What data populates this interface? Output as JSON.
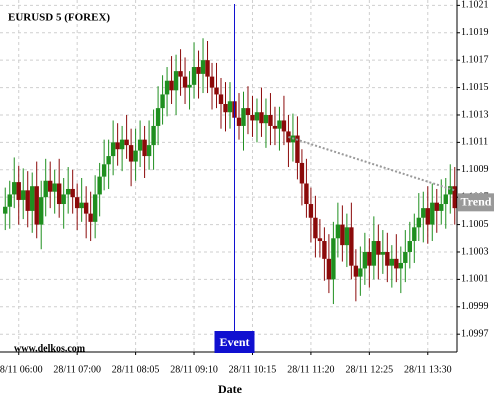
{
  "chart_data": {
    "type": "candlestick",
    "title": "EURUSD 5 (FOREX)",
    "x_label": "Date",
    "watermark": "www.delkos.com",
    "up_color": "#1f8f1f",
    "down_color": "#8b0a0a",
    "grid": true,
    "ylim": [
      1.09957,
      1.10211
    ],
    "yticks": [
      1.1021,
      1.1019,
      1.1017,
      1.1015,
      1.1013,
      1.1011,
      1.1009,
      1.1007,
      1.1005,
      1.1003,
      1.1001,
      1.0999,
      1.0997
    ],
    "categories": [
      null,
      null,
      null,
      "28/11 06:00",
      null,
      null,
      null,
      null,
      null,
      null,
      null,
      null,
      null,
      null,
      null,
      null,
      "28/11 07:00",
      null,
      null,
      null,
      null,
      null,
      null,
      null,
      null,
      null,
      null,
      null,
      null,
      "28/11 08:05",
      null,
      null,
      null,
      null,
      null,
      null,
      null,
      null,
      null,
      null,
      null,
      null,
      "28/11 09:10",
      null,
      null,
      null,
      null,
      null,
      null,
      null,
      null,
      null,
      null,
      null,
      null,
      "28/11 10:15",
      null,
      null,
      null,
      null,
      null,
      null,
      null,
      null,
      null,
      null,
      null,
      null,
      "28/11 11:20",
      null,
      null,
      null,
      null,
      null,
      null,
      null,
      null,
      null,
      null,
      null,
      null,
      "28/11 12:25",
      null,
      null,
      null,
      null,
      null,
      null,
      null,
      null,
      null,
      null,
      null,
      null,
      "28/11 13:30",
      null,
      null,
      null,
      null,
      null,
      null
    ],
    "open": [
      1.10058,
      1.10063,
      1.10072,
      1.10081,
      1.10068,
      1.10075,
      1.1006,
      1.10078,
      1.1005,
      1.1007,
      1.10082,
      1.10074,
      1.1008,
      1.10065,
      1.10072,
      1.10076,
      1.1007,
      1.10062,
      1.10066,
      1.10058,
      1.10052,
      1.10072,
      1.10085,
      1.10094,
      1.101,
      1.1011,
      1.10105,
      1.10112,
      1.10108,
      1.10096,
      1.10104,
      1.10112,
      1.101,
      1.10108,
      1.10122,
      1.10135,
      1.10145,
      1.10155,
      1.10148,
      1.10162,
      1.10158,
      1.1015,
      1.10152,
      1.10165,
      1.1016,
      1.1017,
      1.10158,
      1.1015,
      1.10145,
      1.10138,
      1.10132,
      1.1014,
      1.10128,
      1.10122,
      1.10135,
      1.1013,
      1.10126,
      1.10132,
      1.10124,
      1.1013,
      1.10122,
      1.1012,
      1.10126,
      1.10118,
      1.1011,
      1.10115,
      1.10095,
      1.1008,
      1.10065,
      1.10055,
      1.1004,
      1.10038,
      1.10025,
      1.1001,
      1.1004,
      1.1005,
      1.10035,
      1.10048,
      1.1002,
      1.10012,
      1.10018,
      1.1003,
      1.1002,
      1.10038,
      1.10028,
      1.1003,
      1.1002,
      1.10025,
      1.10018,
      1.10022,
      1.1003,
      1.10038,
      1.10048,
      1.10055,
      1.10062,
      1.1005,
      1.10066,
      1.1006,
      1.10065,
      1.10072,
      1.10078
    ],
    "high": [
      1.10077,
      1.10082,
      1.10099,
      1.10093,
      1.10091,
      1.10089,
      1.10088,
      1.10096,
      1.10082,
      1.10098,
      1.10096,
      1.1009,
      1.10098,
      1.10084,
      1.10092,
      1.1009,
      1.1008,
      1.10084,
      1.10078,
      1.10074,
      1.10086,
      1.10095,
      1.10112,
      1.10112,
      1.10126,
      1.10124,
      1.10122,
      1.1013,
      1.1012,
      1.1012,
      1.10126,
      1.10122,
      1.10126,
      1.10134,
      1.10151,
      1.10159,
      1.10165,
      1.10173,
      1.10174,
      1.10178,
      1.10172,
      1.10162,
      1.10183,
      1.10177,
      1.10186,
      1.10184,
      1.10168,
      1.10168,
      1.10157,
      1.10154,
      1.10154,
      1.1015,
      1.10146,
      1.10147,
      1.10151,
      1.10144,
      1.10142,
      1.1015,
      1.10142,
      1.10146,
      1.10136,
      1.10136,
      1.10144,
      1.1013,
      1.10131,
      1.10129,
      1.10105,
      1.10098,
      1.10077,
      1.10071,
      1.10054,
      1.10048,
      1.10043,
      1.10052,
      1.10066,
      1.10064,
      1.10058,
      1.10066,
      1.10032,
      1.10034,
      1.10044,
      1.1004,
      1.10056,
      1.1005,
      1.10046,
      1.10044,
      1.10035,
      1.10043,
      1.10034,
      1.10046,
      1.10052,
      1.10058,
      1.10073,
      1.10074,
      1.10078,
      1.1008,
      1.10076,
      1.10083,
      1.10084,
      1.10094,
      1.10092
    ],
    "low": [
      1.10046,
      1.10047,
      1.10062,
      1.1005,
      1.10054,
      1.10048,
      1.10044,
      1.1004,
      1.10032,
      1.10056,
      1.10062,
      1.10058,
      1.10055,
      1.10047,
      1.10058,
      1.10058,
      1.10046,
      1.10052,
      1.1004,
      1.10038,
      1.1004,
      1.10056,
      1.10075,
      1.10076,
      1.10086,
      1.10093,
      1.10089,
      1.10098,
      1.10078,
      1.10082,
      1.10092,
      1.10084,
      1.1009,
      1.1009,
      1.10108,
      1.10123,
      1.10129,
      1.10138,
      1.1013,
      1.10144,
      1.10138,
      1.10134,
      1.10142,
      1.10142,
      1.10146,
      1.10146,
      1.10134,
      1.10135,
      1.1012,
      1.10118,
      1.1012,
      1.10112,
      1.10112,
      1.10104,
      1.10116,
      1.10114,
      1.1011,
      1.10114,
      1.10106,
      1.10108,
      1.10108,
      1.10104,
      1.10108,
      1.10092,
      1.10096,
      1.10083,
      1.10064,
      1.10055,
      1.10037,
      1.10026,
      1.10026,
      1.10009,
      1.1,
      1.09992,
      1.10026,
      1.10023,
      1.10019,
      1.1001,
      1.09994,
      1.09998,
      1.10006,
      1.10004,
      1.1001,
      1.1001,
      1.10014,
      1.10008,
      1.10004,
      1.10008,
      1.1,
      1.10008,
      1.10018,
      1.10022,
      1.10038,
      1.10037,
      1.10036,
      1.10038,
      1.10044,
      1.1005,
      1.10047,
      1.10058,
      1.1005
    ],
    "close": [
      1.10063,
      1.10072,
      1.10081,
      1.10068,
      1.10075,
      1.1006,
      1.10078,
      1.1005,
      1.1007,
      1.10082,
      1.10074,
      1.1008,
      1.10065,
      1.10072,
      1.10076,
      1.1007,
      1.10062,
      1.10066,
      1.10058,
      1.10052,
      1.10072,
      1.10085,
      1.10094,
      1.101,
      1.1011,
      1.10105,
      1.10112,
      1.10108,
      1.10096,
      1.10104,
      1.10112,
      1.101,
      1.10108,
      1.10122,
      1.10135,
      1.10145,
      1.10155,
      1.10148,
      1.10162,
      1.10158,
      1.1015,
      1.10152,
      1.10165,
      1.1016,
      1.1017,
      1.10158,
      1.1015,
      1.10145,
      1.10138,
      1.10132,
      1.1014,
      1.10128,
      1.10122,
      1.10135,
      1.1013,
      1.10126,
      1.10132,
      1.10124,
      1.1013,
      1.10122,
      1.1012,
      1.10126,
      1.10118,
      1.1011,
      1.10115,
      1.10095,
      1.1008,
      1.10065,
      1.10055,
      1.1004,
      1.10038,
      1.10025,
      1.1001,
      1.1004,
      1.1005,
      1.10035,
      1.10048,
      1.1002,
      1.10012,
      1.10018,
      1.1003,
      1.1002,
      1.10038,
      1.10028,
      1.1003,
      1.1002,
      1.10025,
      1.10018,
      1.10022,
      1.1003,
      1.10038,
      1.10048,
      1.10055,
      1.10062,
      1.1005,
      1.10066,
      1.1006,
      1.10065,
      1.10072,
      1.10078,
      1.10062
    ],
    "event": {
      "label": "Event",
      "index": 51,
      "color": "#1010d0"
    },
    "trend": {
      "label": "Trend",
      "color": "#999999",
      "start": {
        "index": 63,
        "value": 1.10114
      },
      "end": {
        "index": 100,
        "value": 1.10075
      }
    }
  }
}
